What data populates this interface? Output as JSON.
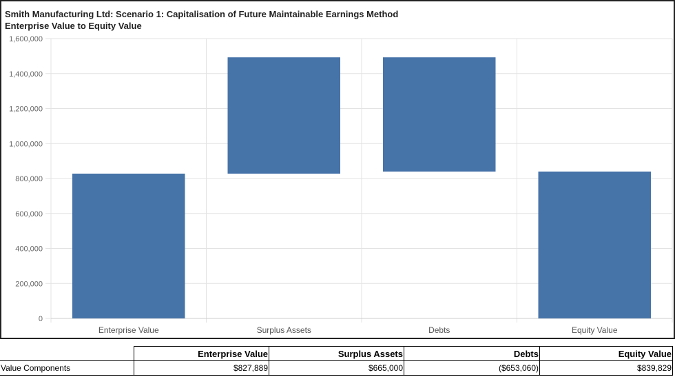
{
  "chart_data": {
    "type": "waterfall",
    "title": "Smith Manufacturing Ltd: Scenario 1: Capitalisation of Future Maintainable Earnings Method",
    "subtitle": "Enterprise Value to Equity Value",
    "categories": [
      "Enterprise Value",
      "Surplus Assets",
      "Debts",
      "Equity Value"
    ],
    "bars": [
      {
        "start": 0,
        "end": 827889
      },
      {
        "start": 827889,
        "end": 1492889
      },
      {
        "start": 1492889,
        "end": 839829
      },
      {
        "start": 0,
        "end": 839829
      }
    ],
    "ylim": [
      0,
      1600000
    ],
    "yticks": [
      "0",
      "200,000",
      "400,000",
      "600,000",
      "800,000",
      "1,000,000",
      "1,200,000",
      "1,400,000",
      "1,600,000"
    ],
    "grid": true,
    "bar_color": "#4673a8"
  },
  "table": {
    "headers": [
      "Enterprise Value",
      "Surplus Assets",
      "Debts",
      "Equity Value"
    ],
    "row_label": "Value Components",
    "values": [
      "$827,889",
      "$665,000",
      "($653,060)",
      "$839,829"
    ]
  }
}
